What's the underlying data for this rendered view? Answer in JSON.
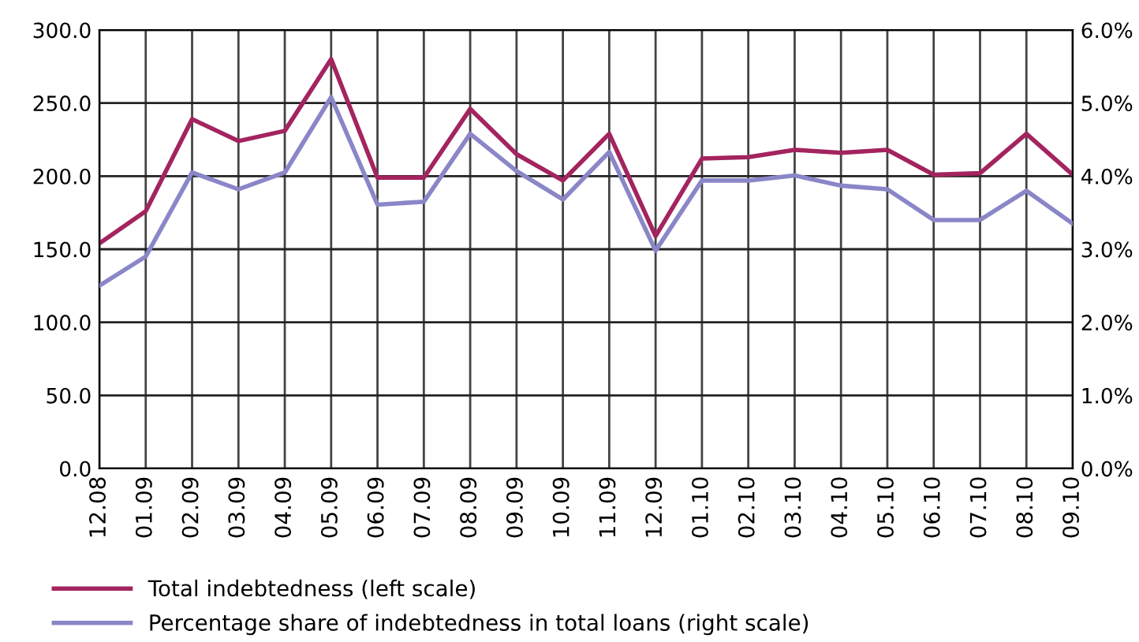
{
  "chart_data": {
    "type": "line",
    "categories": [
      "12.08",
      "01.09",
      "02.09",
      "03.09",
      "04.09",
      "05.09",
      "06.09",
      "07.09",
      "08.09",
      "09.09",
      "10.09",
      "11.09",
      "12.09",
      "01.10",
      "02.10",
      "03.10",
      "04.10",
      "05.10",
      "06.10",
      "07.10",
      "08.10",
      "09.10"
    ],
    "series": [
      {
        "name": "Total indebtedness (left scale)",
        "color": "#a3245f",
        "values": [
          154,
          176,
          239,
          224,
          231,
          280,
          199,
          199,
          246,
          215,
          197,
          229,
          159,
          212,
          213,
          218,
          216,
          218,
          201,
          202,
          229,
          201
        ]
      },
      {
        "name": "Percentage share of indebtedness in total loans (right scale)",
        "color": "#8a86c8",
        "axis": "y2",
        "values": [
          2.5,
          2.9,
          4.05,
          3.82,
          4.05,
          5.08,
          3.61,
          3.65,
          4.58,
          4.07,
          3.68,
          4.33,
          2.98,
          3.94,
          3.94,
          4.01,
          3.87,
          3.82,
          3.4,
          3.4,
          3.8,
          3.35
        ]
      }
    ],
    "ylim": [
      0,
      300
    ],
    "yticks": [
      {
        "value": 0,
        "label": "0.0"
      },
      {
        "value": 50,
        "label": "50.0"
      },
      {
        "value": 100,
        "label": "100.0"
      },
      {
        "value": 150,
        "label": "150.0"
      },
      {
        "value": 200,
        "label": "200.0"
      },
      {
        "value": 250,
        "label": "250.0"
      },
      {
        "value": 300,
        "label": "300.0"
      }
    ],
    "y2lim": [
      0,
      6
    ],
    "y2ticks": [
      {
        "value": 0,
        "label": "0.0%"
      },
      {
        "value": 1,
        "label": "1.0%"
      },
      {
        "value": 2,
        "label": "2.0%"
      },
      {
        "value": 3,
        "label": "3.0%"
      },
      {
        "value": 4,
        "label": "4.0%"
      },
      {
        "value": 5,
        "label": "5.0%"
      },
      {
        "value": 6,
        "label": "6.0%"
      }
    ],
    "grid": true,
    "legend": "bottom left",
    "marker": "none",
    "line_style": "solid"
  }
}
